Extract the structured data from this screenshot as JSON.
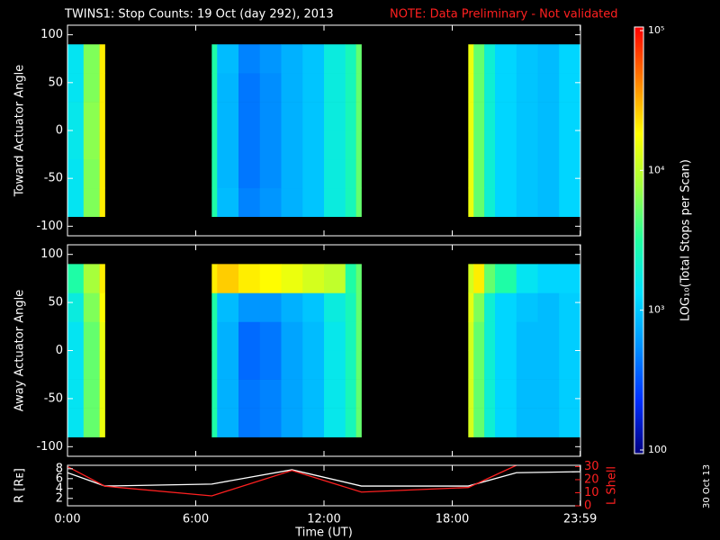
{
  "title": "TWINS1: Stop Counts: 19 Oct (day 292), 2013",
  "note": "NOTE: Data Preliminary - Not validated",
  "date_stamp": "30 Oct 13",
  "colorbar": {
    "title": "LOG₁₀(Total Stops per Scan)",
    "log": true,
    "lim": [
      100,
      100000
    ],
    "ticks": [
      {
        "value": 100000,
        "label": "10⁵"
      },
      {
        "value": 10000,
        "label": "10⁴"
      },
      {
        "value": 1000,
        "label": "10³"
      },
      100
    ],
    "colormap": [
      "#000080",
      "#0030ff",
      "#0090ff",
      "#00e0ff",
      "#20ffa0",
      "#a0ff40",
      "#ffff00",
      "#ff8000",
      "#ff0000"
    ]
  },
  "chart_data": [
    {
      "type": "heatmap",
      "ylabel": "Toward Actuator Angle",
      "ylim": [
        -110,
        110
      ],
      "yticks": [
        -100,
        -50,
        0,
        50,
        100
      ],
      "xbins": [
        0,
        0.75,
        1.5,
        1.75,
        6.75,
        7,
        8,
        9,
        10,
        11,
        12,
        13,
        13.5,
        13.75,
        18.75,
        19,
        19.5,
        20,
        21,
        22,
        23,
        24
      ],
      "ybins": [
        -90,
        -60,
        -30,
        0,
        30,
        60,
        90
      ],
      "values": [
        [
          1500,
          6000,
          20000,
          null,
          3000,
          900,
          500,
          600,
          800,
          1000,
          1800,
          2500,
          5000,
          null,
          15000,
          5000,
          2000,
          1200,
          1000,
          900,
          1200
        ],
        [
          1500,
          6000,
          20000,
          null,
          3000,
          850,
          450,
          550,
          800,
          1000,
          1800,
          2500,
          5000,
          null,
          15000,
          5000,
          2000,
          1200,
          1000,
          900,
          1200
        ],
        [
          1600,
          6500,
          20000,
          null,
          3000,
          850,
          450,
          550,
          800,
          1000,
          1800,
          2500,
          5000,
          null,
          15000,
          5000,
          2000,
          1200,
          1000,
          900,
          1200
        ],
        [
          1600,
          6500,
          20000,
          null,
          3000,
          850,
          450,
          550,
          800,
          1000,
          1800,
          2500,
          5000,
          null,
          15000,
          5000,
          2000,
          1200,
          1000,
          900,
          1200
        ],
        [
          1500,
          6000,
          20000,
          null,
          3000,
          850,
          450,
          550,
          800,
          1000,
          1800,
          2500,
          5000,
          null,
          15000,
          5000,
          2000,
          1200,
          1000,
          900,
          1200
        ],
        [
          1500,
          6000,
          20000,
          null,
          3000,
          900,
          500,
          600,
          800,
          1000,
          1800,
          2500,
          5000,
          null,
          15000,
          5000,
          2000,
          1200,
          1000,
          900,
          1200
        ]
      ]
    },
    {
      "type": "heatmap",
      "ylabel": "Away Actuator Angle",
      "ylim": [
        -110,
        110
      ],
      "yticks": [
        -100,
        -50,
        0,
        50,
        100
      ],
      "xbins": [
        0,
        0.75,
        1.5,
        1.75,
        6.75,
        7,
        8,
        9,
        10,
        11,
        12,
        13,
        13.5,
        13.75,
        18.75,
        19,
        19.5,
        20,
        21,
        22,
        23,
        24
      ],
      "ybins": [
        -90,
        -60,
        -30,
        0,
        30,
        60,
        90
      ],
      "values": [
        [
          1500,
          5000,
          15000,
          null,
          3000,
          800,
          450,
          500,
          700,
          900,
          1600,
          2500,
          5000,
          null,
          12000,
          5000,
          2000,
          1200,
          900,
          900,
          1100
        ],
        [
          1500,
          5000,
          15000,
          null,
          3000,
          800,
          450,
          500,
          700,
          900,
          1600,
          2500,
          5000,
          null,
          12000,
          5000,
          2000,
          1200,
          900,
          900,
          1100
        ],
        [
          1500,
          5000,
          15000,
          null,
          3000,
          800,
          400,
          450,
          700,
          900,
          1600,
          2500,
          5000,
          null,
          12000,
          5000,
          2000,
          1200,
          900,
          900,
          1100
        ],
        [
          1500,
          5000,
          15000,
          null,
          3000,
          800,
          400,
          450,
          700,
          900,
          1600,
          2500,
          5000,
          null,
          12000,
          5000,
          2000,
          1200,
          900,
          900,
          1100
        ],
        [
          1800,
          6000,
          18000,
          null,
          3000,
          900,
          600,
          600,
          800,
          1000,
          1800,
          2500,
          5000,
          null,
          14000,
          6000,
          2000,
          1200,
          1000,
          900,
          1100
        ],
        [
          3000,
          8000,
          20000,
          null,
          20000,
          25000,
          20000,
          18000,
          15000,
          12000,
          10000,
          3000,
          5000,
          null,
          12000,
          20000,
          5000,
          3000,
          1500,
          1200,
          1200
        ]
      ]
    },
    {
      "type": "line",
      "ylabel": "R [Rᴇ]",
      "y2label": "L Shell",
      "xlabel": "Time (UT)",
      "xlim": [
        0,
        24
      ],
      "xticks": [
        {
          "value": 0,
          "label": "0:00"
        },
        {
          "value": 6,
          "label": "6:00"
        },
        {
          "value": 12,
          "label": "12:00"
        },
        {
          "value": 18,
          "label": "18:00"
        },
        {
          "value": 23.9833,
          "label": "23:59"
        }
      ],
      "ylim": [
        0.5,
        8.7
      ],
      "yticks": [
        2,
        4,
        6,
        8
      ],
      "y2lim": [
        0,
        31
      ],
      "y2ticks": [
        0,
        10,
        20,
        30
      ],
      "series": [
        {
          "name": "R",
          "color": "#ffffff",
          "x": [
            0,
            1.75,
            6.75,
            10.5,
            13.75,
            18.75,
            21,
            24
          ],
          "values": [
            7.2,
            4.5,
            4.9,
            7.8,
            4.5,
            4.5,
            7.2,
            7.4
          ]
        },
        {
          "name": "L Shell",
          "color": "#ff2020",
          "axis": "y2",
          "x": [
            0,
            1.75,
            6.75,
            10.5,
            13.75,
            18.75,
            21
          ],
          "values": [
            30,
            15,
            7.6,
            27,
            10.5,
            14,
            31
          ]
        }
      ]
    }
  ]
}
